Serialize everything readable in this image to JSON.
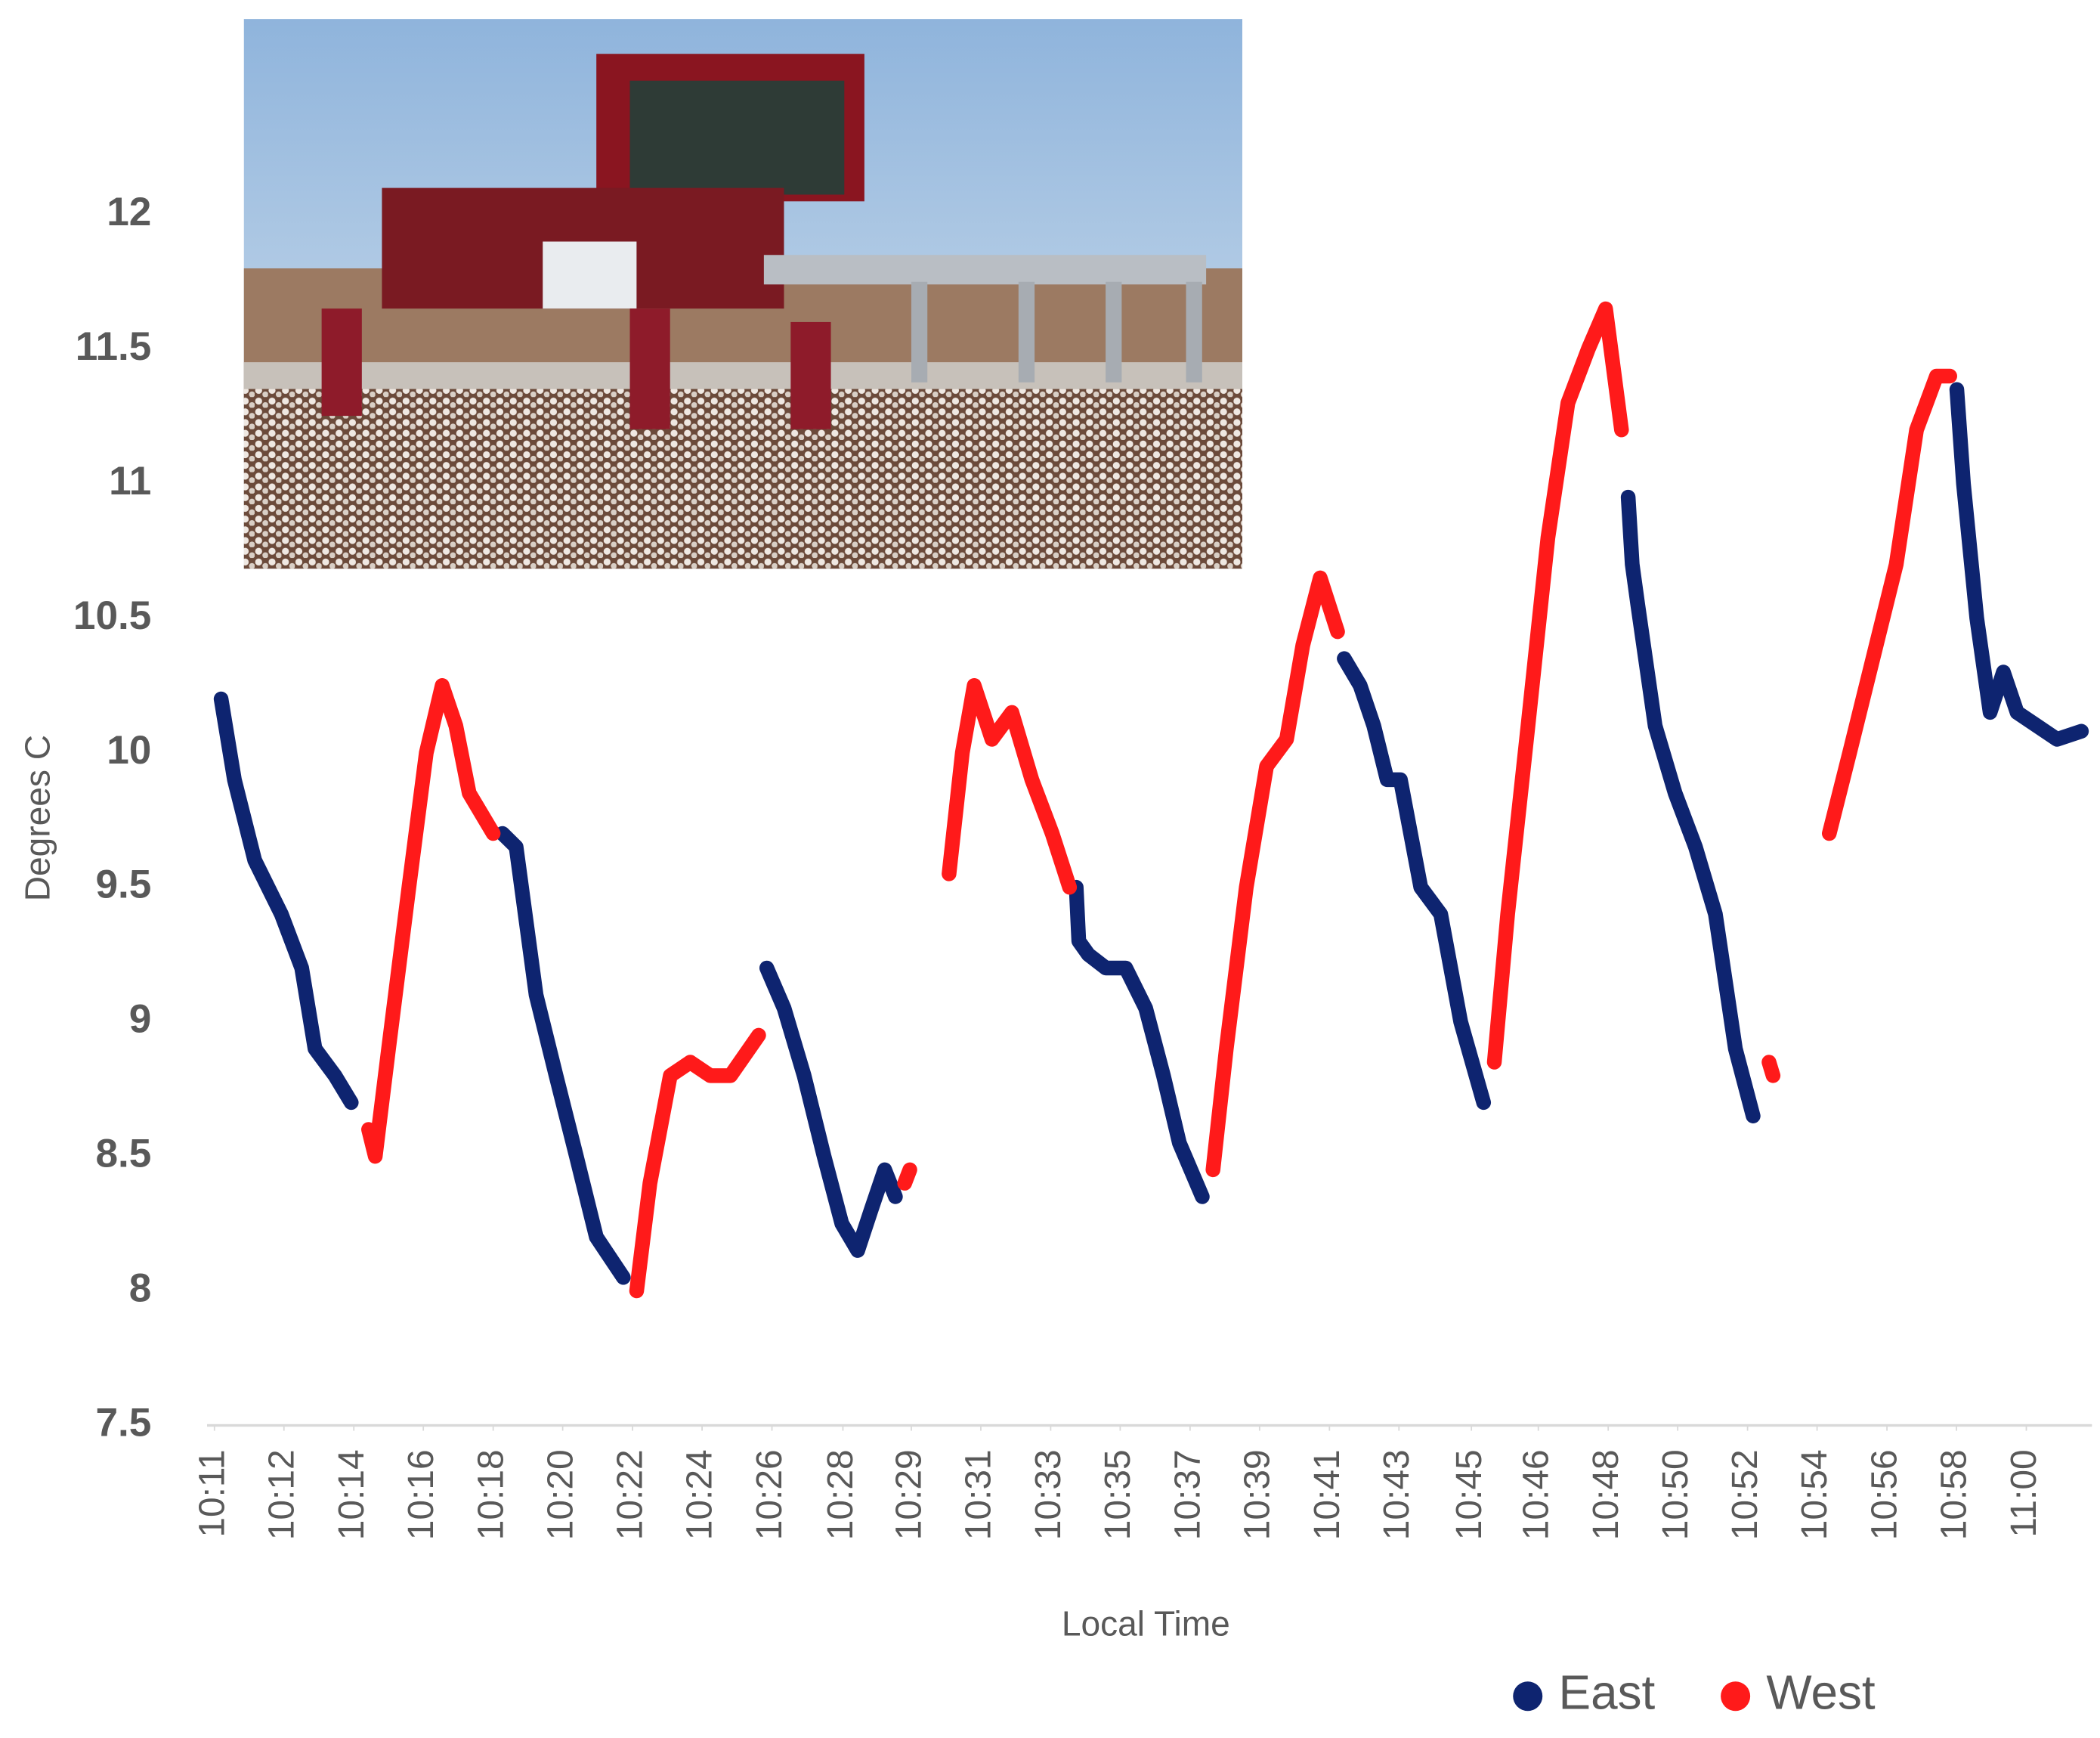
{
  "chart_data": {
    "type": "line",
    "y_label": "Degrees C",
    "x_label": "Local Time",
    "ylim": [
      7.5,
      12.5
    ],
    "yticks": [
      7.5,
      8,
      8.5,
      9,
      9.5,
      10,
      10.5,
      11,
      11.5,
      12
    ],
    "xlim": [
      610.8,
      661.8
    ],
    "xticks": [
      {
        "value": 611,
        "label": "10:11"
      },
      {
        "value": 612.88,
        "label": "10:12"
      },
      {
        "value": 614.77,
        "label": "10:14"
      },
      {
        "value": 616.65,
        "label": "10:16"
      },
      {
        "value": 618.54,
        "label": "10:18"
      },
      {
        "value": 620.42,
        "label": "10:20"
      },
      {
        "value": 622.31,
        "label": "10:22"
      },
      {
        "value": 624.19,
        "label": "10:24"
      },
      {
        "value": 626.08,
        "label": "10:26"
      },
      {
        "value": 628.0,
        "label": "10:28"
      },
      {
        "value": 629.85,
        "label": "10:29"
      },
      {
        "value": 631.73,
        "label": "10:31"
      },
      {
        "value": 633.62,
        "label": "10:33"
      },
      {
        "value": 635.5,
        "label": "10:35"
      },
      {
        "value": 637.39,
        "label": "10:37"
      },
      {
        "value": 639.27,
        "label": "10:39"
      },
      {
        "value": 641.16,
        "label": "10:41"
      },
      {
        "value": 643.04,
        "label": "10:43"
      },
      {
        "value": 645.0,
        "label": "10:45"
      },
      {
        "value": 646.81,
        "label": "10:46"
      },
      {
        "value": 648.7,
        "label": "10:48"
      },
      {
        "value": 650.58,
        "label": "10:50"
      },
      {
        "value": 652.47,
        "label": "10:52"
      },
      {
        "value": 654.35,
        "label": "10:54"
      },
      {
        "value": 656.24,
        "label": "10:56"
      },
      {
        "value": 658.12,
        "label": "10:58"
      },
      {
        "value": 660.01,
        "label": "11:00"
      }
    ],
    "grid": false,
    "legend": "bottom",
    "series": [
      {
        "name": "East",
        "color": "#0e2470",
        "x": [
          611.18,
          611.54,
          612.09,
          612.81,
          613.36,
          613.72,
          614.26,
          614.7,
          null,
          618.79,
          619.16,
          619.7,
          620.24,
          620.79,
          621.33,
          622.06,
          null,
          625.94,
          626.41,
          626.95,
          627.49,
          627.97,
          628.4,
          628.76,
          629.13,
          629.42,
          null,
          634.31,
          634.38,
          634.64,
          635.11,
          635.65,
          636.19,
          636.67,
          637.1,
          637.72,
          null,
          641.56,
          641.99,
          642.36,
          642.72,
          643.08,
          643.63,
          644.17,
          644.71,
          645.33,
          null,
          649.24,
          649.35,
          649.5,
          649.97,
          650.51,
          651.06,
          651.6,
          652.14,
          652.62,
          null,
          658.13,
          658.31,
          658.67,
          659.03,
          659.39,
          659.76,
          660.3,
          660.84,
          661.5
        ],
        "values": [
          10.2,
          9.9,
          9.6,
          9.4,
          9.2,
          8.9,
          8.8,
          8.7,
          null,
          9.7,
          9.65,
          9.1,
          8.8,
          8.5,
          8.2,
          8.05,
          null,
          9.2,
          9.05,
          8.8,
          8.5,
          8.25,
          8.15,
          8.3,
          8.45,
          8.35,
          null,
          9.5,
          9.3,
          9.25,
          9.2,
          9.2,
          9.05,
          8.8,
          8.55,
          8.35,
          null,
          10.35,
          10.25,
          10.1,
          9.9,
          9.9,
          9.5,
          9.4,
          9.0,
          8.7,
          null,
          10.95,
          10.7,
          10.55,
          10.1,
          9.85,
          9.65,
          9.4,
          8.9,
          8.65,
          null,
          11.35,
          11.0,
          10.5,
          10.15,
          10.3,
          10.15,
          10.1,
          10.05,
          10.08
        ]
      },
      {
        "name": "West",
        "color": "#ff1a1a",
        "x": [
          615.17,
          615.35,
          615.71,
          616.26,
          616.73,
          617.16,
          617.53,
          617.89,
          618.54,
          null,
          622.42,
          622.78,
          623.33,
          623.87,
          624.41,
          624.96,
          625.72,
          null,
          629.67,
          629.81,
          null,
          630.87,
          631.23,
          631.55,
          632.03,
          632.57,
          633.11,
          633.66,
          634.13,
          null,
          638.01,
          638.37,
          638.91,
          639.46,
          640.0,
          640.44,
          640.91,
          641.38,
          null,
          645.62,
          645.98,
          646.53,
          647.07,
          647.61,
          648.16,
          648.63,
          649.06,
          null,
          653.05,
          653.16,
          null,
          654.68,
          655.23,
          655.95,
          656.49,
          657.04,
          657.58,
          657.94
        ],
        "values": [
          8.6,
          8.5,
          8.9,
          9.5,
          10.0,
          10.25,
          10.1,
          9.85,
          9.7,
          null,
          8.0,
          8.4,
          8.8,
          8.85,
          8.8,
          8.8,
          8.95,
          null,
          8.4,
          8.45,
          null,
          9.55,
          10.0,
          10.25,
          10.05,
          10.15,
          9.9,
          9.7,
          9.5,
          null,
          8.45,
          8.9,
          9.5,
          9.95,
          10.05,
          10.4,
          10.65,
          10.45,
          null,
          8.85,
          9.4,
          10.1,
          10.8,
          11.3,
          11.5,
          11.65,
          11.2,
          null,
          8.85,
          8.8,
          null,
          9.7,
          10.0,
          10.4,
          10.7,
          11.2,
          11.4,
          11.4
        ]
      }
    ]
  }
}
